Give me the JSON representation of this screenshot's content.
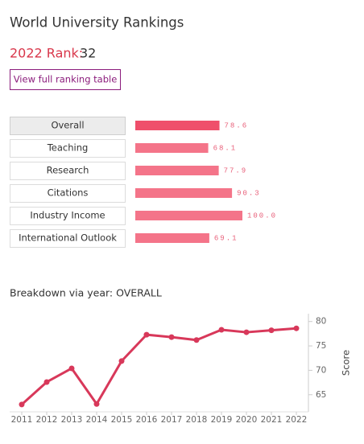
{
  "header": {
    "title": "World University Rankings",
    "rank_label": "2022 Rank:",
    "rank": "32",
    "button": "View full ranking table"
  },
  "chart_data": [
    {
      "type": "bar",
      "orientation": "horizontal",
      "categories": [
        "Overall",
        "Teaching",
        "Research",
        "Citations",
        "Industry Income",
        "International Outlook"
      ],
      "values": [
        78.6,
        68.1,
        77.9,
        90.3,
        100,
        69.1
      ],
      "value_labels": [
        "78.6",
        "68.1",
        "77.9",
        "90.3",
        "100.0",
        "69.1"
      ],
      "colors": [
        "#ef4f6b",
        "#f47489",
        "#f47489",
        "#f47489",
        "#f47489",
        "#f47489"
      ],
      "xlim": [
        0,
        100
      ]
    },
    {
      "type": "line",
      "title": "Breakdown via year: OVERALL",
      "categories": [
        "2011",
        "2012",
        "2013",
        "2014",
        "2015",
        "2016",
        "2017",
        "2018",
        "2019",
        "2020",
        "2021",
        "2022"
      ],
      "values": [
        63.0,
        67.6,
        70.4,
        63.1,
        71.9,
        77.3,
        76.8,
        76.2,
        78.3,
        77.8,
        78.2,
        78.6
      ],
      "color": "#d8385a",
      "ylim": [
        61.5,
        81.6
      ],
      "yticks": [
        65,
        70,
        75,
        80
      ],
      "y_label": "Score",
      "y_axis_side": "right"
    }
  ]
}
